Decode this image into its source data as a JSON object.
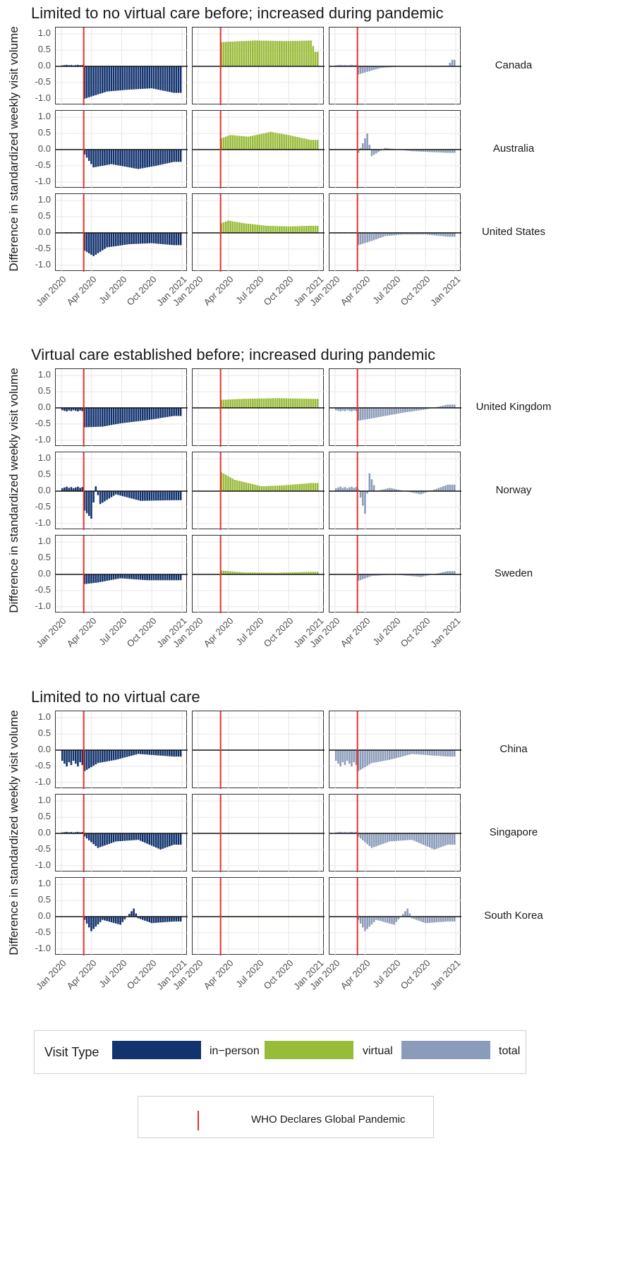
{
  "chart_data": {
    "type": "bar",
    "ylim": [
      -1.2,
      1.2
    ],
    "yticks": [
      "1.0",
      "0.5",
      "0.0",
      "-0.5",
      "-1.0"
    ],
    "ytick_values": [
      1.0,
      0.5,
      0.0,
      -0.5,
      -1.0
    ],
    "xticks": [
      "Jan 2020",
      "Apr 2020",
      "Jul 2020",
      "Oct 2020",
      "Jan 2021"
    ],
    "ylabel": "Difference in standardized weekly visit volume",
    "pandemic_line_date": "2020-03-11",
    "colors": {
      "in-person": "#12336e",
      "virtual": "#98bb38",
      "total": "#8b9cba",
      "who_line": "#e8302a"
    },
    "groups": [
      {
        "title": "Limited to no virtual care before; increased during pandemic",
        "countries": [
          {
            "name": "Canada",
            "in_person": {
              "pre": 0.05,
              "pts": [
                [
                  0,
                  -1.0
                ],
                [
                  10,
                  -0.78
                ],
                [
                  20,
                  -0.72
                ],
                [
                  30,
                  -0.68
                ],
                [
                  40,
                  -0.82
                ]
              ]
            },
            "virtual": {
              "pre": 0.0,
              "pts": [
                [
                  0,
                  0.75
                ],
                [
                  15,
                  0.8
                ],
                [
                  30,
                  0.78
                ],
                [
                  40,
                  0.8
                ],
                [
                  42,
                  0.45
                ]
              ]
            },
            "total": {
              "pre": 0.05,
              "pts": [
                [
                  0,
                  -0.25
                ],
                [
                  5,
                  -0.15
                ],
                [
                  10,
                  -0.05
                ],
                [
                  20,
                  0.0
                ],
                [
                  40,
                  0.02
                ],
                [
                  42,
                  0.2
                ]
              ]
            }
          },
          {
            "name": "Australia",
            "in_person": {
              "pre": 0.0,
              "pts": [
                [
                  0,
                  -0.15
                ],
                [
                  4,
                  -0.55
                ],
                [
                  12,
                  -0.45
                ],
                [
                  24,
                  -0.6
                ],
                [
                  32,
                  -0.5
                ],
                [
                  40,
                  -0.38
                ]
              ]
            },
            "virtual": {
              "pre": 0.0,
              "pts": [
                [
                  0,
                  0.35
                ],
                [
                  4,
                  0.45
                ],
                [
                  12,
                  0.4
                ],
                [
                  22,
                  0.55
                ],
                [
                  30,
                  0.45
                ],
                [
                  40,
                  0.3
                ]
              ]
            },
            "total": {
              "pre": 0.0,
              "pts": [
                [
                  0,
                  -0.1
                ],
                [
                  2,
                  0.2
                ],
                [
                  4,
                  0.5
                ],
                [
                  6,
                  -0.2
                ],
                [
                  12,
                  0.05
                ],
                [
                  24,
                  -0.05
                ],
                [
                  40,
                  -0.1
                ]
              ]
            }
          },
          {
            "name": "United States",
            "in_person": {
              "pre": 0.02,
              "pts": [
                [
                  0,
                  -0.55
                ],
                [
                  4,
                  -0.72
                ],
                [
                  10,
                  -0.45
                ],
                [
                  20,
                  -0.35
                ],
                [
                  30,
                  -0.32
                ],
                [
                  40,
                  -0.38
                ]
              ]
            },
            "virtual": {
              "pre": 0.0,
              "pts": [
                [
                  0,
                  0.3
                ],
                [
                  3,
                  0.38
                ],
                [
                  10,
                  0.3
                ],
                [
                  20,
                  0.22
                ],
                [
                  30,
                  0.2
                ],
                [
                  40,
                  0.22
                ]
              ]
            },
            "total": {
              "pre": 0.02,
              "pts": [
                [
                  0,
                  -0.38
                ],
                [
                  6,
                  -0.25
                ],
                [
                  12,
                  -0.1
                ],
                [
                  20,
                  -0.05
                ],
                [
                  30,
                  -0.05
                ],
                [
                  40,
                  -0.12
                ]
              ]
            }
          }
        ]
      },
      {
        "title": "Virtual care established before; increased during pandemic",
        "countries": [
          {
            "name": "United Kingdom",
            "in_person": {
              "pre": -0.12,
              "pts": [
                [
                  0,
                  -0.6
                ],
                [
                  8,
                  -0.58
                ],
                [
                  16,
                  -0.48
                ],
                [
                  28,
                  -0.38
                ],
                [
                  40,
                  -0.25
                ]
              ]
            },
            "virtual": {
              "pre": 0.0,
              "pts": [
                [
                  0,
                  0.25
                ],
                [
                  10,
                  0.28
                ],
                [
                  25,
                  0.3
                ],
                [
                  40,
                  0.28
                ]
              ]
            },
            "total": {
              "pre": -0.12,
              "pts": [
                [
                  0,
                  -0.4
                ],
                [
                  8,
                  -0.3
                ],
                [
                  20,
                  -0.15
                ],
                [
                  30,
                  -0.05
                ],
                [
                  40,
                  0.1
                ]
              ]
            }
          },
          {
            "name": "Norway",
            "in_person": {
              "pre": 0.15,
              "pts": [
                [
                  0,
                  -0.6
                ],
                [
                  3,
                  -0.85
                ],
                [
                  5,
                  0.15
                ],
                [
                  7,
                  -0.4
                ],
                [
                  14,
                  -0.1
                ],
                [
                  25,
                  -0.3
                ],
                [
                  40,
                  -0.28
                ]
              ]
            },
            "virtual": {
              "pre": 0.0,
              "pts": [
                [
                  0,
                  0.58
                ],
                [
                  6,
                  0.35
                ],
                [
                  18,
                  0.15
                ],
                [
                  28,
                  0.18
                ],
                [
                  40,
                  0.25
                ]
              ]
            },
            "total": {
              "pre": 0.15,
              "pts": [
                [
                  0,
                  0.05
                ],
                [
                  3,
                  -0.7
                ],
                [
                  5,
                  0.55
                ],
                [
                  8,
                  0.0
                ],
                [
                  14,
                  0.1
                ],
                [
                  28,
                  -0.1
                ],
                [
                  40,
                  0.2
                ]
              ]
            }
          },
          {
            "name": "Sweden",
            "in_person": {
              "pre": 0.0,
              "pts": [
                [
                  0,
                  -0.3
                ],
                [
                  6,
                  -0.25
                ],
                [
                  16,
                  -0.12
                ],
                [
                  28,
                  -0.18
                ],
                [
                  40,
                  -0.18
                ]
              ]
            },
            "virtual": {
              "pre": 0.0,
              "pts": [
                [
                  0,
                  0.12
                ],
                [
                  10,
                  0.06
                ],
                [
                  25,
                  0.05
                ],
                [
                  40,
                  0.08
                ]
              ]
            },
            "total": {
              "pre": 0.0,
              "pts": [
                [
                  0,
                  -0.2
                ],
                [
                  6,
                  -0.05
                ],
                [
                  16,
                  0.0
                ],
                [
                  28,
                  -0.08
                ],
                [
                  40,
                  0.1
                ]
              ]
            }
          }
        ]
      },
      {
        "title": "Limited to no virtual care",
        "countries": [
          {
            "name": "China",
            "in_person": {
              "pre": -0.55,
              "pts": [
                [
                  0,
                  -0.65
                ],
                [
                  6,
                  -0.4
                ],
                [
                  14,
                  -0.3
                ],
                [
                  24,
                  -0.12
                ],
                [
                  30,
                  -0.15
                ],
                [
                  40,
                  -0.2
                ]
              ]
            },
            "virtual": {
              "pre": 0.0,
              "pts": [
                [
                  0,
                  0.0
                ],
                [
                  40,
                  0.0
                ]
              ]
            },
            "total": {
              "pre": -0.55,
              "pts": [
                [
                  0,
                  -0.65
                ],
                [
                  6,
                  -0.4
                ],
                [
                  14,
                  -0.3
                ],
                [
                  24,
                  -0.12
                ],
                [
                  30,
                  -0.15
                ],
                [
                  40,
                  -0.2
                ]
              ]
            }
          },
          {
            "name": "Singapore",
            "in_person": {
              "pre": 0.05,
              "pts": [
                [
                  0,
                  -0.1
                ],
                [
                  6,
                  -0.45
                ],
                [
                  14,
                  -0.25
                ],
                [
                  24,
                  -0.2
                ],
                [
                  34,
                  -0.5
                ],
                [
                  40,
                  -0.35
                ]
              ]
            },
            "virtual": {
              "pre": 0.0,
              "pts": [
                [
                  0,
                  0.0
                ],
                [
                  40,
                  0.0
                ]
              ]
            },
            "total": {
              "pre": 0.05,
              "pts": [
                [
                  0,
                  -0.1
                ],
                [
                  6,
                  -0.45
                ],
                [
                  14,
                  -0.25
                ],
                [
                  24,
                  -0.2
                ],
                [
                  34,
                  -0.5
                ],
                [
                  40,
                  -0.35
                ]
              ]
            }
          },
          {
            "name": "South Korea",
            "in_person": {
              "pre": 0.0,
              "pts": [
                [
                  0,
                  -0.1
                ],
                [
                  3,
                  -0.45
                ],
                [
                  8,
                  -0.1
                ],
                [
                  16,
                  -0.25
                ],
                [
                  22,
                  0.25
                ],
                [
                  24,
                  -0.05
                ],
                [
                  30,
                  -0.2
                ],
                [
                  40,
                  -0.15
                ]
              ]
            },
            "virtual": {
              "pre": 0.0,
              "pts": [
                [
                  0,
                  0.02
                ],
                [
                  40,
                  0.02
                ]
              ]
            },
            "total": {
              "pre": 0.0,
              "pts": [
                [
                  0,
                  -0.1
                ],
                [
                  3,
                  -0.45
                ],
                [
                  8,
                  -0.1
                ],
                [
                  16,
                  -0.25
                ],
                [
                  22,
                  0.25
                ],
                [
                  24,
                  -0.05
                ],
                [
                  30,
                  -0.2
                ],
                [
                  40,
                  -0.15
                ]
              ]
            }
          }
        ]
      }
    ]
  },
  "legend": {
    "title": "Visit Type",
    "items": [
      {
        "label": "in−person",
        "color": "#12336e"
      },
      {
        "label": "virtual",
        "color": "#98bb38"
      },
      {
        "label": "total",
        "color": "#8b9cba"
      }
    ],
    "who_label": "WHO Declares Global Pandemic"
  }
}
